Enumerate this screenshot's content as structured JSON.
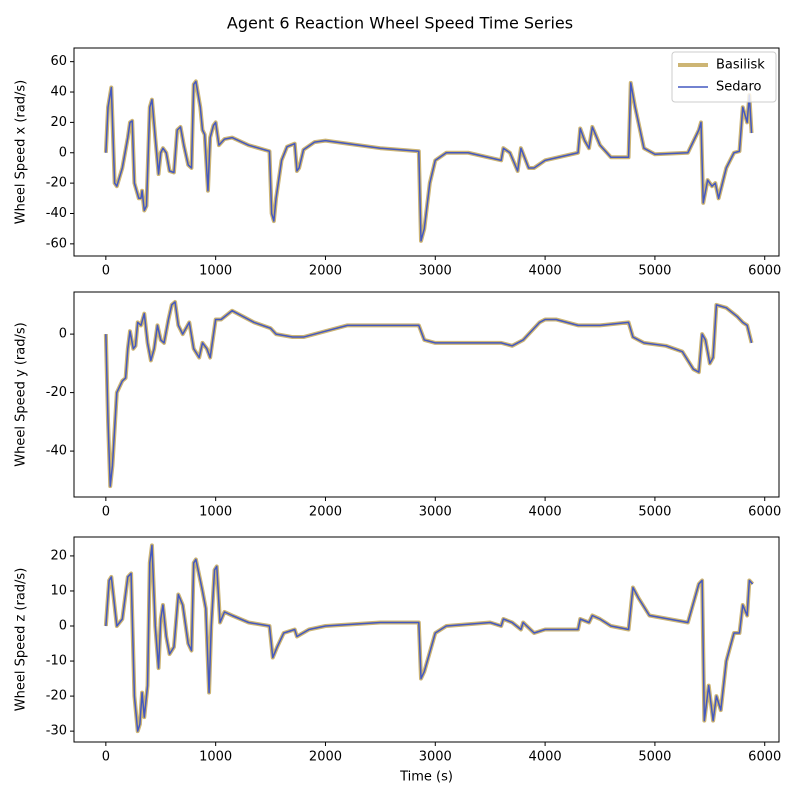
{
  "title": "Agent 6 Reaction Wheel Speed Time Series",
  "chart_data": [
    {
      "type": "line",
      "ylabel": "Wheel Speed x (rad/s)",
      "legend": "upper right",
      "xlim": [
        -290,
        6130
      ],
      "xticks": [
        0,
        1000,
        2000,
        3000,
        4000,
        5000,
        6000
      ],
      "ylim": [
        -68,
        69
      ],
      "yticks": [
        -60,
        -40,
        -20,
        0,
        20,
        40,
        60
      ],
      "x": [
        0,
        20,
        50,
        80,
        100,
        150,
        200,
        220,
        240,
        260,
        300,
        320,
        330,
        350,
        370,
        400,
        420,
        450,
        480,
        500,
        520,
        550,
        580,
        620,
        650,
        680,
        710,
        750,
        780,
        800,
        820,
        860,
        880,
        900,
        930,
        950,
        980,
        1000,
        1030,
        1080,
        1150,
        1300,
        1490,
        1510,
        1530,
        1550,
        1600,
        1650,
        1720,
        1740,
        1760,
        1800,
        1900,
        2000,
        2200,
        2500,
        2850,
        2870,
        2900,
        2950,
        3000,
        3100,
        3300,
        3600,
        3620,
        3680,
        3750,
        3780,
        3850,
        3900,
        4000,
        4300,
        4320,
        4360,
        4400,
        4430,
        4500,
        4600,
        4760,
        4780,
        4820,
        4900,
        5000,
        5300,
        5400,
        5420,
        5440,
        5480,
        5520,
        5550,
        5580,
        5650,
        5720,
        5770,
        5800,
        5840,
        5860,
        5880
      ],
      "series": [
        {
          "name": "Basilisk",
          "color": "#cdb574",
          "values": [
            0,
            30,
            43,
            -20,
            -22,
            -10,
            10,
            20,
            21,
            -20,
            -30,
            -30,
            -25,
            -38,
            -35,
            30,
            35,
            10,
            -14,
            0,
            3,
            0,
            -12,
            -13,
            15,
            17,
            5,
            -8,
            -10,
            45,
            47,
            30,
            15,
            12,
            -25,
            10,
            18,
            20,
            5,
            9,
            10,
            5,
            1,
            -40,
            -45,
            -30,
            -5,
            4,
            6,
            -12,
            -10,
            2,
            7,
            8,
            6,
            3,
            1,
            -58,
            -50,
            -20,
            -5,
            0,
            0,
            -5,
            3,
            0,
            -12,
            3,
            -10,
            -10,
            -5,
            0,
            16,
            8,
            3,
            17,
            5,
            -3,
            -3,
            46,
            30,
            3,
            -1,
            0,
            15,
            20,
            -33,
            -18,
            -22,
            -20,
            -30,
            -10,
            0,
            1,
            30,
            20,
            38,
            13
          ]
        },
        {
          "name": "Sedaro",
          "color": "#4458c0",
          "values": [
            0,
            30,
            43,
            -20,
            -22,
            -10,
            10,
            20,
            21,
            -20,
            -30,
            -30,
            -25,
            -38,
            -35,
            30,
            35,
            10,
            -14,
            0,
            3,
            0,
            -12,
            -13,
            15,
            17,
            5,
            -8,
            -10,
            45,
            47,
            30,
            15,
            12,
            -25,
            10,
            18,
            20,
            5,
            9,
            10,
            5,
            1,
            -40,
            -45,
            -30,
            -5,
            4,
            6,
            -12,
            -10,
            2,
            7,
            8,
            6,
            3,
            1,
            -58,
            -50,
            -20,
            -5,
            0,
            0,
            -5,
            3,
            0,
            -12,
            3,
            -10,
            -10,
            -5,
            0,
            16,
            8,
            3,
            17,
            5,
            -3,
            -3,
            46,
            30,
            3,
            -1,
            0,
            15,
            20,
            -33,
            -18,
            -22,
            -20,
            -30,
            -10,
            0,
            1,
            30,
            20,
            38,
            13
          ]
        }
      ]
    },
    {
      "type": "line",
      "ylabel": "Wheel Speed y (rad/s)",
      "xlim": [
        -290,
        6130
      ],
      "xticks": [
        0,
        1000,
        2000,
        3000,
        4000,
        5000,
        6000
      ],
      "ylim": [
        -55.7,
        14.4
      ],
      "yticks": [
        -40,
        -20,
        0
      ],
      "x": [
        0,
        20,
        40,
        60,
        100,
        150,
        180,
        200,
        220,
        250,
        270,
        290,
        320,
        350,
        380,
        410,
        440,
        470,
        500,
        530,
        570,
        600,
        630,
        660,
        700,
        760,
        800,
        850,
        880,
        920,
        950,
        1000,
        1050,
        1150,
        1250,
        1350,
        1500,
        1550,
        1700,
        1800,
        2000,
        2200,
        2600,
        2850,
        2900,
        3000,
        3300,
        3600,
        3700,
        3800,
        3850,
        3950,
        4000,
        4100,
        4300,
        4400,
        4500,
        4760,
        4800,
        4900,
        5100,
        5250,
        5350,
        5400,
        5430,
        5460,
        5500,
        5530,
        5560,
        5650,
        5750,
        5800,
        5840,
        5880
      ],
      "series": [
        {
          "name": "Basilisk",
          "color": "#cdb574",
          "values": [
            0,
            -30,
            -52,
            -45,
            -20,
            -16,
            -15,
            -5,
            1,
            -5,
            -4,
            4,
            3,
            7,
            -3,
            -9,
            -5,
            3,
            -2,
            -3,
            5,
            10,
            11,
            3,
            0,
            4,
            -5,
            -8,
            -3,
            -5,
            -8,
            5,
            5,
            8,
            6,
            4,
            2,
            0,
            -1,
            -1,
            1,
            3,
            3,
            3,
            -2,
            -3,
            -3,
            -3,
            -4,
            -2,
            0,
            4,
            5,
            5,
            3,
            3,
            3,
            4,
            -1,
            -3,
            -4,
            -6,
            -12,
            -13,
            0,
            -2,
            -10,
            -8,
            10,
            9,
            6,
            4,
            3,
            -3
          ]
        },
        {
          "name": "Sedaro",
          "color": "#4458c0",
          "values": [
            0,
            -30,
            -52,
            -45,
            -20,
            -16,
            -15,
            -5,
            1,
            -5,
            -4,
            4,
            3,
            7,
            -3,
            -9,
            -5,
            3,
            -2,
            -3,
            5,
            10,
            11,
            3,
            0,
            4,
            -5,
            -8,
            -3,
            -5,
            -8,
            5,
            5,
            8,
            6,
            4,
            2,
            0,
            -1,
            -1,
            1,
            3,
            3,
            3,
            -2,
            -3,
            -3,
            -3,
            -4,
            -2,
            0,
            4,
            5,
            5,
            3,
            3,
            3,
            4,
            -1,
            -3,
            -4,
            -6,
            -12,
            -13,
            0,
            -2,
            -10,
            -8,
            10,
            9,
            6,
            4,
            3,
            -3
          ]
        }
      ]
    },
    {
      "type": "line",
      "ylabel": "Wheel Speed z (rad/s)",
      "xlabel": "Time (s)",
      "xlim": [
        -290,
        6130
      ],
      "xticks": [
        0,
        1000,
        2000,
        3000,
        4000,
        5000,
        6000
      ],
      "ylim": [
        -33.1,
        25.4
      ],
      "yticks": [
        -30,
        -20,
        -10,
        0,
        10,
        20
      ],
      "x": [
        0,
        30,
        50,
        100,
        150,
        200,
        230,
        260,
        290,
        310,
        330,
        350,
        380,
        400,
        420,
        450,
        480,
        500,
        520,
        550,
        580,
        620,
        660,
        700,
        750,
        780,
        800,
        820,
        860,
        880,
        910,
        940,
        960,
        990,
        1010,
        1040,
        1080,
        1150,
        1300,
        1490,
        1520,
        1560,
        1620,
        1720,
        1740,
        1850,
        2000,
        2500,
        2850,
        2870,
        2900,
        3000,
        3100,
        3500,
        3600,
        3620,
        3700,
        3780,
        3800,
        3900,
        4000,
        4300,
        4320,
        4400,
        4430,
        4500,
        4600,
        4760,
        4800,
        4850,
        4950,
        5300,
        5400,
        5430,
        5450,
        5490,
        5530,
        5560,
        5600,
        5650,
        5720,
        5770,
        5800,
        5840,
        5860,
        5890
      ],
      "series": [
        {
          "name": "Basilisk",
          "color": "#cdb574",
          "values": [
            0,
            13,
            14,
            0,
            2,
            14,
            15,
            -20,
            -30,
            -28,
            -19,
            -26,
            -17,
            18,
            23,
            0,
            -12,
            2,
            6,
            -3,
            -8,
            -6,
            9,
            6,
            -5,
            -7,
            18,
            19,
            13,
            10,
            5,
            -19,
            0,
            16,
            17,
            1,
            4,
            3,
            1,
            0,
            -9,
            -6,
            -2,
            -1,
            -3,
            -1,
            0,
            1,
            1,
            -15,
            -13,
            -2,
            0,
            1,
            0,
            2,
            1,
            -1,
            1,
            -2,
            -1,
            -1,
            2,
            1,
            3,
            2,
            0,
            -1,
            11,
            8,
            3,
            1,
            12,
            13,
            -27,
            -17,
            -27,
            -20,
            -24,
            -10,
            -2,
            -2,
            6,
            3,
            13,
            12
          ]
        },
        {
          "name": "Sedaro",
          "color": "#4458c0",
          "values": [
            0,
            13,
            14,
            0,
            2,
            14,
            15,
            -20,
            -30,
            -28,
            -19,
            -26,
            -17,
            18,
            23,
            0,
            -12,
            2,
            6,
            -3,
            -8,
            -6,
            9,
            6,
            -5,
            -7,
            18,
            19,
            13,
            10,
            5,
            -19,
            0,
            16,
            17,
            1,
            4,
            3,
            1,
            0,
            -9,
            -6,
            -2,
            -1,
            -3,
            -1,
            0,
            1,
            1,
            -15,
            -13,
            -2,
            0,
            1,
            0,
            2,
            1,
            -1,
            1,
            -2,
            -1,
            -1,
            2,
            1,
            3,
            2,
            0,
            -1,
            11,
            8,
            3,
            1,
            12,
            13,
            -27,
            -17,
            -27,
            -20,
            -24,
            -10,
            -2,
            -2,
            6,
            3,
            13,
            12
          ]
        }
      ]
    }
  ]
}
